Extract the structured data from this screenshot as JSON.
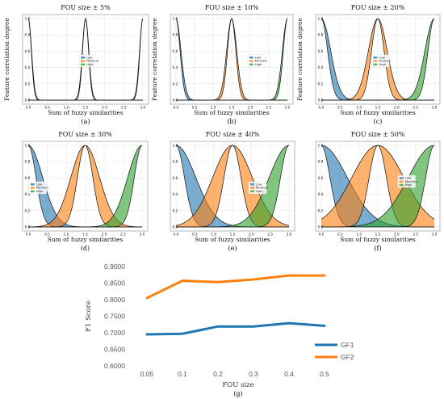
{
  "chart_data": [
    {
      "type": "area",
      "title": "FOU size ± 5%",
      "xlabel": "Sum of fuzzy similarities",
      "ylabel": "Feature correlation degree",
      "caption": "(a)",
      "fou": 0.05,
      "xlim": [
        -0.15,
        3.15
      ],
      "ylim": [
        -0.05,
        1.05
      ],
      "xticks": [
        "0.0",
        "0.5",
        "1.0",
        "1.5",
        "2.0",
        "2.5",
        "3.0"
      ],
      "yticks": [
        "0.0",
        "0.2",
        "0.4",
        "0.6",
        "0.8",
        "1.0"
      ],
      "series": [
        {
          "name": "Low",
          "center": 0.0,
          "color": "#1f77b4"
        },
        {
          "name": "Medium",
          "center": 1.5,
          "color": "#ff7f0e"
        },
        {
          "name": "High",
          "center": 3.0,
          "color": "#2ca02c"
        }
      ],
      "legend": "center"
    },
    {
      "type": "area",
      "title": "FOU size ± 10%",
      "xlabel": "Sum of fuzzy similarities",
      "ylabel": "Feature correlation degree",
      "caption": "(b)",
      "fou": 0.1,
      "xlim": [
        -0.15,
        3.15
      ],
      "ylim": [
        -0.05,
        1.05
      ],
      "xticks": [
        "0.0",
        "0.5",
        "1.0",
        "1.5",
        "2.0",
        "2.5",
        "3.0"
      ],
      "yticks": [
        "0.0",
        "0.2",
        "0.4",
        "0.6",
        "0.8",
        "1.0"
      ],
      "series": [
        {
          "name": "Low",
          "center": 0.0,
          "color": "#1f77b4"
        },
        {
          "name": "Medium",
          "center": 1.5,
          "color": "#ff7f0e"
        },
        {
          "name": "High",
          "center": 3.0,
          "color": "#2ca02c"
        }
      ],
      "legend": "center-right"
    },
    {
      "type": "area",
      "title": "FOU size ± 20%",
      "xlabel": "Sum of fuzzy similarities",
      "ylabel": "Feature correlation degree",
      "caption": "(c)",
      "fou": 0.2,
      "xlim": [
        -0.15,
        3.15
      ],
      "ylim": [
        -0.05,
        1.05
      ],
      "xticks": [
        "0.0",
        "0.5",
        "1.0",
        "1.5",
        "2.0",
        "2.5",
        "3.0"
      ],
      "yticks": [
        "0.0",
        "0.2",
        "0.4",
        "0.6",
        "0.8",
        "1.0"
      ],
      "series": [
        {
          "name": "Low",
          "center": 0.0,
          "color": "#1f77b4"
        },
        {
          "name": "Medium",
          "center": 1.5,
          "color": "#ff7f0e"
        },
        {
          "name": "High",
          "center": 3.0,
          "color": "#2ca02c"
        }
      ],
      "legend": "center"
    },
    {
      "type": "area",
      "title": "FOU size ± 30%",
      "xlabel": "Sum of fuzzy similarities",
      "ylabel": "",
      "caption": "(d)",
      "fou": 0.3,
      "xlim": [
        -0.15,
        3.15
      ],
      "ylim": [
        -0.05,
        1.05
      ],
      "xticks": [
        "0.0",
        "0.5",
        "1.0",
        "1.5",
        "2.0",
        "2.5",
        "3.0"
      ],
      "yticks": [
        "0.0",
        "0.2",
        "0.4",
        "0.6",
        "0.8",
        "1.0"
      ],
      "series": [
        {
          "name": "Low",
          "center": 0.0,
          "color": "#1f77b4"
        },
        {
          "name": "Medium",
          "center": 1.5,
          "color": "#ff7f0e"
        },
        {
          "name": "High",
          "center": 3.0,
          "color": "#2ca02c"
        }
      ],
      "legend": "center-left"
    },
    {
      "type": "area",
      "title": "FOU size ± 40%",
      "xlabel": "Sum of fuzzy similarities",
      "ylabel": "",
      "caption": "(e)",
      "fou": 0.4,
      "xlim": [
        -0.15,
        3.15
      ],
      "ylim": [
        -0.05,
        1.05
      ],
      "xticks": [
        "0.0",
        "0.5",
        "1.0",
        "1.5",
        "2.0",
        "2.5",
        "3.0"
      ],
      "yticks": [
        "0.0",
        "0.2",
        "0.4",
        "0.6",
        "0.8",
        "1.0"
      ],
      "series": [
        {
          "name": "Low",
          "center": 0.0,
          "color": "#1f77b4"
        },
        {
          "name": "Medium",
          "center": 1.5,
          "color": "#ff7f0e"
        },
        {
          "name": "High",
          "center": 3.0,
          "color": "#2ca02c"
        }
      ],
      "legend": "center-right"
    },
    {
      "type": "area",
      "title": "FOU size ± 50%",
      "xlabel": "Sum of fuzzy similarities",
      "ylabel": "",
      "caption": "(f)",
      "fou": 0.5,
      "xlim": [
        -0.15,
        3.15
      ],
      "ylim": [
        -0.05,
        1.05
      ],
      "xticks": [
        "0.0",
        "0.5",
        "1.0",
        "1.5",
        "2.0",
        "2.5",
        "3.0"
      ],
      "yticks": [
        "0.0",
        "0.2",
        "0.4",
        "0.6",
        "0.8",
        "1.0"
      ],
      "series": [
        {
          "name": "Low",
          "center": 0.0,
          "color": "#1f77b4"
        },
        {
          "name": "Medium",
          "center": 1.5,
          "color": "#ff7f0e"
        },
        {
          "name": "High",
          "center": 3.0,
          "color": "#2ca02c"
        }
      ],
      "legend": "upper-right"
    },
    {
      "type": "line",
      "title": "",
      "xlabel": "FOU size",
      "ylabel": "F1 Score",
      "caption": "(g)",
      "categories": [
        "0.05",
        "0.1",
        "0.2",
        "0.3",
        "0.4",
        "0.5"
      ],
      "ylim": [
        0.6,
        0.9
      ],
      "yticks": [
        "0.6000",
        "0.6500",
        "0.7000",
        "0.7500",
        "0.8000",
        "0.8500",
        "0.9000"
      ],
      "series": [
        {
          "name": "GF1",
          "color": "#1f77b4",
          "values": [
            0.695,
            0.697,
            0.719,
            0.719,
            0.729,
            0.721
          ]
        },
        {
          "name": "GF2",
          "color": "#ff7f0e",
          "values": [
            0.805,
            0.857,
            0.853,
            0.861,
            0.873,
            0.873
          ]
        }
      ],
      "grid": false,
      "legend": "lower-right"
    }
  ]
}
